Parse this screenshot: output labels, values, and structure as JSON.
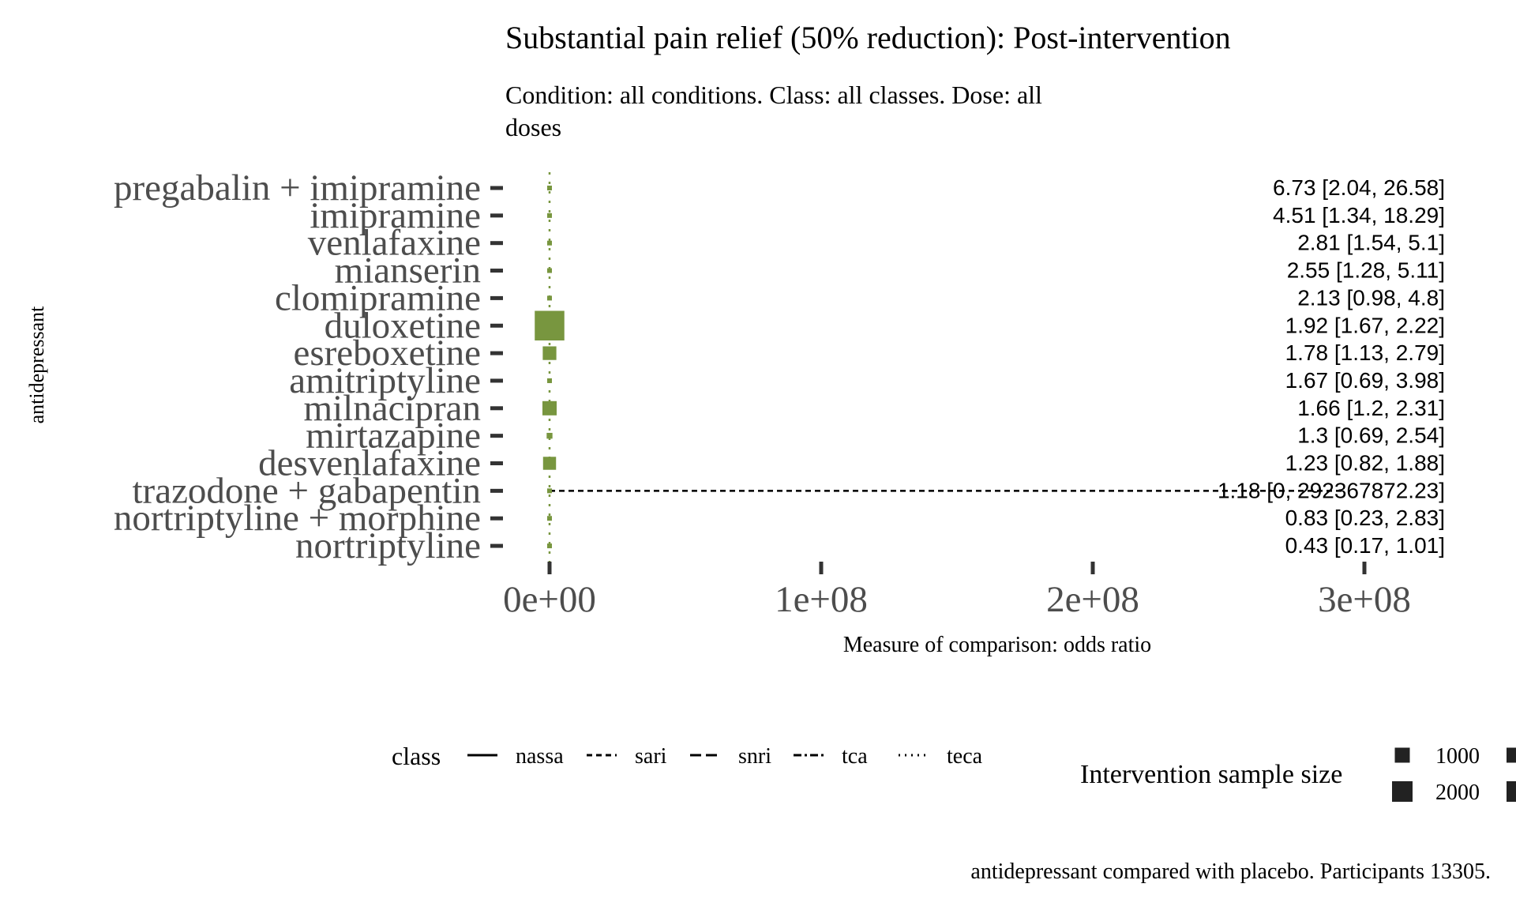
{
  "chart_data": {
    "type": "forest",
    "title": "Substantial pain relief (50% reduction): Post-intervention",
    "subtitle_lines": [
      "Condition: all conditions. Class: all classes. Dose: all",
      "doses"
    ],
    "ylabel": "antidepressant",
    "xlabel": "Measure of comparison: odds ratio",
    "caption": "antidepressant compared with placebo. Participants 13305.",
    "xlim": [
      -170000000,
      330000000
    ],
    "x_ticks": [
      0,
      100000000,
      200000000,
      300000000
    ],
    "x_tick_labels": [
      "0e+00",
      "1e+08",
      "2e+08",
      "3e+08"
    ],
    "reference_line": 1,
    "point_color": "#78963f",
    "rows": [
      {
        "name": "pregabalin + imipramine",
        "or": 6.73,
        "lo": 2.04,
        "hi": 26.58,
        "label": "6.73 [2.04, 26.58]",
        "n": 50,
        "class": "teca"
      },
      {
        "name": "imipramine",
        "or": 4.51,
        "lo": 1.34,
        "hi": 18.29,
        "label": "4.51 [1.34, 18.29]",
        "n": 50,
        "class": "tca"
      },
      {
        "name": "venlafaxine",
        "or": 2.81,
        "lo": 1.54,
        "hi": 5.1,
        "label": "2.81 [1.54, 5.1]",
        "n": 100,
        "class": "snri"
      },
      {
        "name": "mianserin",
        "or": 2.55,
        "lo": 1.28,
        "hi": 5.11,
        "label": "2.55 [1.28, 5.11]",
        "n": 80,
        "class": "teca"
      },
      {
        "name": "clomipramine",
        "or": 2.13,
        "lo": 0.98,
        "hi": 4.8,
        "label": "2.13 [0.98, 4.8]",
        "n": 60,
        "class": "tca"
      },
      {
        "name": "duloxetine",
        "or": 1.92,
        "lo": 1.67,
        "hi": 2.22,
        "label": "1.92 [1.67, 2.22]",
        "n": 5200,
        "class": "snri"
      },
      {
        "name": "esreboxetine",
        "or": 1.78,
        "lo": 1.13,
        "hi": 2.79,
        "label": "1.78 [1.13, 2.79]",
        "n": 1100,
        "class": "snri"
      },
      {
        "name": "amitriptyline",
        "or": 1.67,
        "lo": 0.69,
        "hi": 3.98,
        "label": "1.67 [0.69, 3.98]",
        "n": 50,
        "class": "tca"
      },
      {
        "name": "milnacipran",
        "or": 1.66,
        "lo": 1.2,
        "hi": 2.31,
        "label": "1.66 [1.2, 2.31]",
        "n": 1200,
        "class": "snri"
      },
      {
        "name": "mirtazapine",
        "or": 1.3,
        "lo": 0.69,
        "hi": 2.54,
        "label": "1.3 [0.69, 2.54]",
        "n": 200,
        "class": "nassa"
      },
      {
        "name": "desvenlafaxine",
        "or": 1.23,
        "lo": 0.82,
        "hi": 1.88,
        "label": "1.23 [0.82, 1.88]",
        "n": 1000,
        "class": "snri"
      },
      {
        "name": "trazodone + gabapentin",
        "or": 1.18,
        "lo": 0,
        "hi": 292367872.23,
        "label": "1.18 [0, 292367872.23]",
        "n": 100,
        "class": "sari"
      },
      {
        "name": "nortriptyline + morphine",
        "or": 0.83,
        "lo": 0.23,
        "hi": 2.83,
        "label": "0.83 [0.23, 2.83]",
        "n": 40,
        "class": "tca"
      },
      {
        "name": "nortriptyline",
        "or": 0.43,
        "lo": 0.17,
        "hi": 1.01,
        "label": "0.43 [0.17, 1.01]",
        "n": 120,
        "class": "tca"
      }
    ],
    "legend_class": {
      "title": "class",
      "items": [
        {
          "name": "nassa",
          "dash": "solid"
        },
        {
          "name": "sari",
          "dash": "dashed"
        },
        {
          "name": "snri",
          "dash": "longdash"
        },
        {
          "name": "tca",
          "dash": "twodash"
        },
        {
          "name": "teca",
          "dash": "dotted"
        }
      ]
    },
    "legend_size": {
      "title": "Intervention sample size",
      "items": [
        {
          "label": "1000",
          "n": 1000
        },
        {
          "label": "2000",
          "n": 2000
        }
      ]
    }
  }
}
